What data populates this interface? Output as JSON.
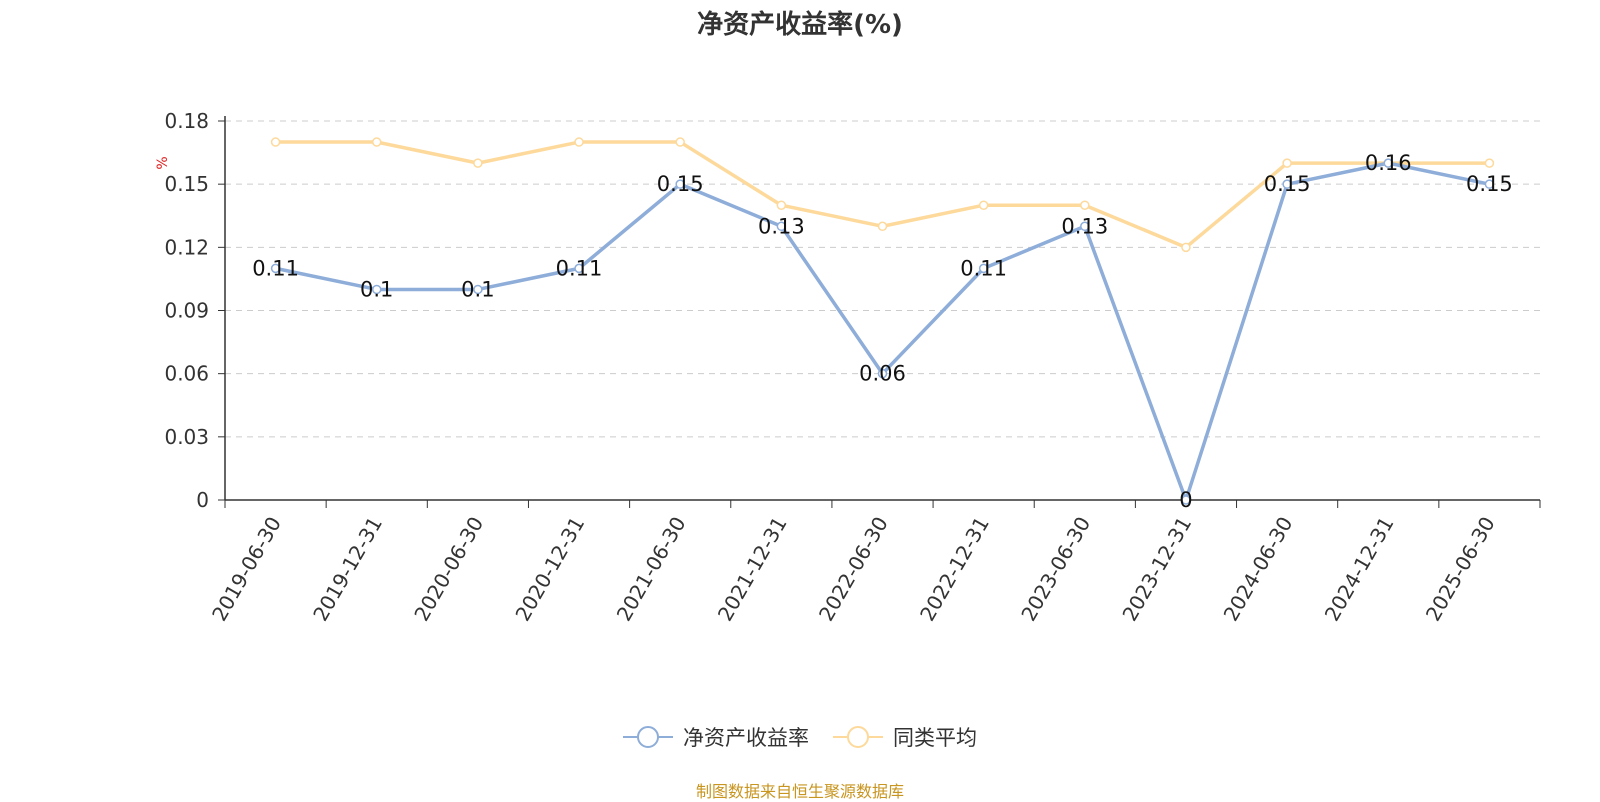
{
  "title": "净资产收益率(%)",
  "source": "制图数据来自恒生聚源数据库",
  "chart_data": {
    "type": "line",
    "title": "净资产收益率(%)",
    "ylabel": "%",
    "ylim": [
      0,
      0.18
    ],
    "yticks": [
      "0",
      "0.03",
      "0.06",
      "0.09",
      "0.12",
      "0.15",
      "0.18"
    ],
    "yticks_values": [
      0,
      0.03,
      0.06,
      0.09,
      0.12,
      0.15,
      0.18
    ],
    "grid": "horizontal-dashed",
    "legend_position": "bottom-center",
    "categories": [
      "2019-06-30",
      "2019-12-31",
      "2020-06-30",
      "2020-12-31",
      "2021-06-30",
      "2021-12-31",
      "2022-06-30",
      "2022-12-31",
      "2023-06-30",
      "2023-12-31",
      "2024-06-30",
      "2024-12-31",
      "2025-06-30"
    ],
    "series": [
      {
        "name": "净资产收益率",
        "color": "#8eadd9",
        "values": [
          0.11,
          0.1,
          0.1,
          0.11,
          0.15,
          0.13,
          0.06,
          0.11,
          0.13,
          0,
          0.15,
          0.16,
          0.15
        ],
        "labels": [
          "0.11",
          "0.1",
          "0.1",
          "0.11",
          "0.15",
          "0.13",
          "0.06",
          "0.11",
          "0.13",
          "0",
          "0.15",
          "0.16",
          "0.15"
        ]
      },
      {
        "name": "同类平均",
        "color": "#fdd99b",
        "values": [
          0.17,
          0.17,
          0.16,
          0.17,
          0.17,
          0.14,
          0.13,
          0.14,
          0.14,
          0.12,
          0.16,
          0.16,
          0.16
        ]
      }
    ]
  }
}
